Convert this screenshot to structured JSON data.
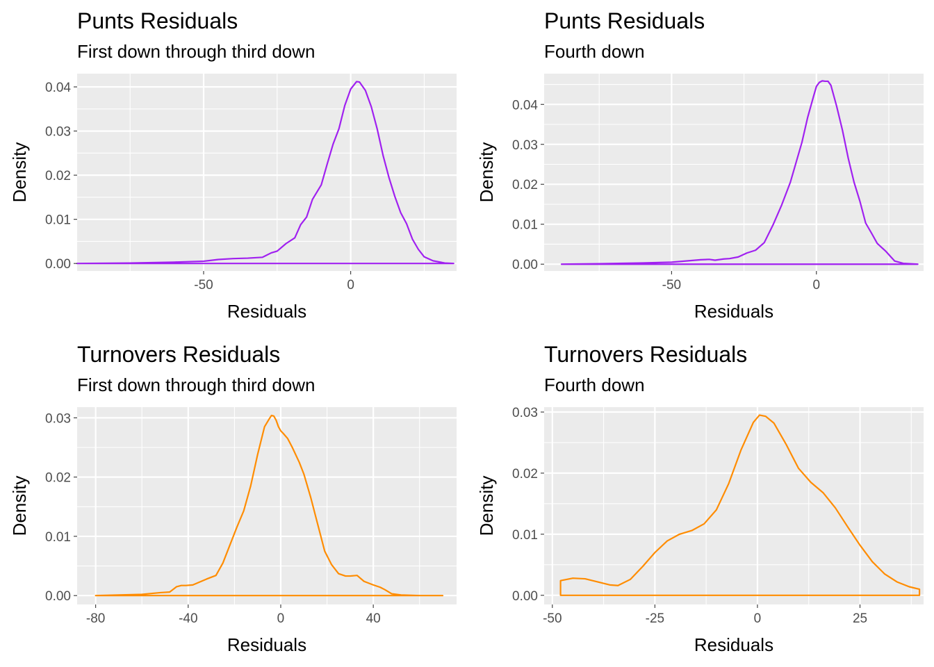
{
  "chart_data": [
    {
      "type": "area",
      "title": "Punts Residuals",
      "subtitle": "First down through third down",
      "xlabel": "Residuals",
      "ylabel": "Density",
      "xlim": [
        -93,
        36
      ],
      "ylim": [
        -0.0017,
        0.043
      ],
      "x_ticks": [
        -50,
        0
      ],
      "x_tick_labels": [
        "-50",
        "0"
      ],
      "y_ticks": [
        0,
        0.01,
        0.02,
        0.03,
        0.04
      ],
      "y_tick_labels": [
        "0.00",
        "0.01",
        "0.02",
        "0.03",
        "0.04"
      ],
      "color": "#a020f0",
      "grid": true,
      "series": [
        {
          "x": [
            -93,
            -75,
            -60,
            -50,
            -45,
            -40,
            -35,
            -30,
            -27,
            -25,
            -22,
            -19,
            -17,
            -15,
            -13,
            -10,
            -8,
            -6,
            -4,
            -2,
            0,
            2,
            3,
            5,
            7,
            9,
            11,
            13,
            15,
            17,
            19,
            21,
            23,
            25,
            28,
            32,
            35
          ],
          "y": [
            0,
            0.0001,
            0.0003,
            0.0005,
            0.0009,
            0.0011,
            0.0012,
            0.0014,
            0.0024,
            0.0028,
            0.0045,
            0.0058,
            0.0088,
            0.0105,
            0.0145,
            0.0178,
            0.0225,
            0.027,
            0.0305,
            0.0358,
            0.0395,
            0.0412,
            0.0411,
            0.0392,
            0.0355,
            0.0305,
            0.0245,
            0.0195,
            0.0152,
            0.0115,
            0.009,
            0.0055,
            0.0032,
            0.0015,
            0.0006,
            0.0001,
            0
          ]
        }
      ]
    },
    {
      "type": "area",
      "title": "Punts Residuals",
      "subtitle": "Fourth down",
      "xlabel": "Residuals",
      "ylabel": "Density",
      "xlim": [
        -94,
        37
      ],
      "ylim": [
        -0.0017,
        0.0477
      ],
      "x_ticks": [
        -50,
        0
      ],
      "x_tick_labels": [
        "-50",
        "0"
      ],
      "y_ticks": [
        0,
        0.01,
        0.02,
        0.03,
        0.04
      ],
      "y_tick_labels": [
        "0.00",
        "0.01",
        "0.02",
        "0.03",
        "0.04"
      ],
      "color": "#a020f0",
      "grid": true,
      "series": [
        {
          "x": [
            -88,
            -75,
            -60,
            -50,
            -45,
            -40,
            -37,
            -35,
            -32,
            -30,
            -27,
            -24,
            -21,
            -18,
            -15,
            -12,
            -9,
            -7,
            -5,
            -3,
            -1,
            0,
            1,
            2,
            3,
            4,
            5,
            7,
            9,
            11,
            13,
            15,
            17,
            19,
            21,
            24,
            27,
            30,
            35
          ],
          "y": [
            0,
            0.0001,
            0.0003,
            0.0005,
            0.0008,
            0.0011,
            0.0012,
            0.001,
            0.0013,
            0.0014,
            0.0018,
            0.0028,
            0.0035,
            0.0054,
            0.0098,
            0.0148,
            0.0205,
            0.0255,
            0.0305,
            0.0368,
            0.042,
            0.0445,
            0.0455,
            0.0459,
            0.0458,
            0.0458,
            0.0448,
            0.0395,
            0.0335,
            0.0265,
            0.0205,
            0.0158,
            0.0103,
            0.0078,
            0.0052,
            0.0032,
            0.0008,
            0.0002,
            0
          ]
        }
      ]
    },
    {
      "type": "area",
      "title": "Turnovers Residuals",
      "subtitle": "First down through third down",
      "xlabel": "Residuals",
      "ylabel": "Density",
      "xlim": [
        -88,
        76
      ],
      "ylim": [
        -0.0015,
        0.0318
      ],
      "x_ticks": [
        -80,
        -40,
        0,
        40
      ],
      "x_tick_labels": [
        "-80",
        "-40",
        "0",
        "40"
      ],
      "y_ticks": [
        0,
        0.01,
        0.02,
        0.03
      ],
      "y_tick_labels": [
        "0.00",
        "0.01",
        "0.02",
        "0.03"
      ],
      "color": "#ff8c00",
      "grid": true,
      "series": [
        {
          "x": [
            -80,
            -70,
            -60,
            -52,
            -48,
            -45,
            -43,
            -41,
            -38,
            -35,
            -32,
            -28,
            -25,
            -22,
            -19,
            -16,
            -13,
            -10,
            -7,
            -5,
            -4,
            -3,
            -2,
            -1,
            0,
            1,
            3,
            5,
            8,
            10,
            13,
            16,
            19,
            22,
            25,
            28,
            30,
            33,
            36,
            40,
            43,
            45,
            48,
            52,
            60,
            70
          ],
          "y": [
            0,
            0.0001,
            0.0002,
            0.0005,
            0.0006,
            0.0015,
            0.0017,
            0.0017,
            0.0018,
            0.0023,
            0.0028,
            0.0034,
            0.0055,
            0.0085,
            0.0115,
            0.0143,
            0.0185,
            0.0238,
            0.0285,
            0.0298,
            0.0304,
            0.0303,
            0.0296,
            0.0285,
            0.0278,
            0.0274,
            0.0265,
            0.025,
            0.0225,
            0.0205,
            0.0165,
            0.012,
            0.0075,
            0.0052,
            0.0037,
            0.0033,
            0.0033,
            0.0034,
            0.0024,
            0.0018,
            0.0014,
            0.001,
            0.0003,
            0.0001,
            0,
            0
          ]
        }
      ]
    },
    {
      "type": "area",
      "title": "Turnovers Residuals",
      "subtitle": "Fourth down",
      "xlabel": "Residuals",
      "ylabel": "Density",
      "xlim": [
        -52,
        40.5
      ],
      "ylim": [
        -0.0015,
        0.0308
      ],
      "x_ticks": [
        -50,
        -25,
        0,
        25
      ],
      "x_tick_labels": [
        "-50",
        "-25",
        "0",
        "25"
      ],
      "y_ticks": [
        0,
        0.01,
        0.02,
        0.03
      ],
      "y_tick_labels": [
        "0.00",
        "0.01",
        "0.02",
        "0.03"
      ],
      "color": "#ff8c00",
      "grid": true,
      "series": [
        {
          "x": [
            -48,
            -45,
            -42,
            -39,
            -36,
            -34,
            -31,
            -28,
            -25,
            -22,
            -19,
            -16,
            -13,
            -10,
            -7,
            -4,
            -1,
            0.5,
            2,
            4,
            7,
            10,
            13,
            16,
            19,
            22,
            25,
            28,
            31,
            34,
            37,
            39.5
          ],
          "y": [
            0.0024,
            0.0028,
            0.0027,
            0.0022,
            0.0017,
            0.0016,
            0.0026,
            0.0047,
            0.007,
            0.0089,
            0.01,
            0.0106,
            0.0117,
            0.014,
            0.0183,
            0.0238,
            0.0283,
            0.0295,
            0.0293,
            0.0282,
            0.0247,
            0.0208,
            0.0185,
            0.0168,
            0.0143,
            0.0112,
            0.0082,
            0.0055,
            0.0035,
            0.0022,
            0.0014,
            0.001
          ]
        }
      ]
    }
  ]
}
